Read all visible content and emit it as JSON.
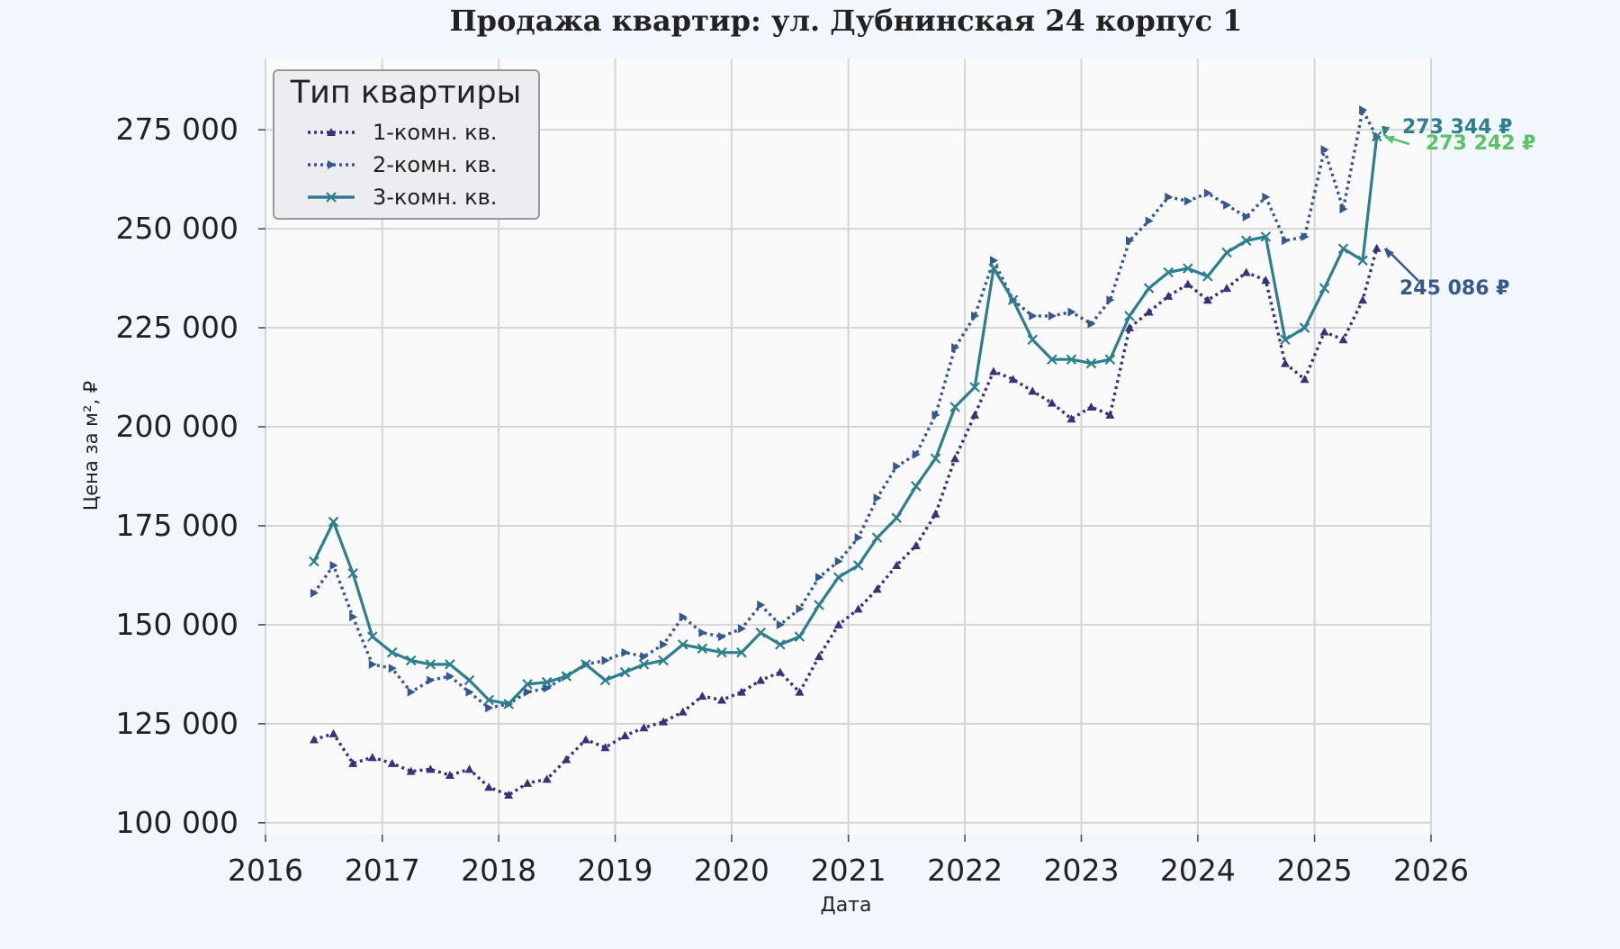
{
  "chart_data": {
    "type": "line",
    "title": "Продажа квартир: ул. Дубнинская 24 корпус 1",
    "xlabel": "Дата",
    "ylabel": "Цена за м², ₽",
    "xlim": [
      "2016-01-01",
      "2026-01-01"
    ],
    "ylim": [
      97000,
      293000
    ],
    "x_ticks": [
      "2016",
      "2017",
      "2018",
      "2019",
      "2020",
      "2021",
      "2022",
      "2023",
      "2024",
      "2025",
      "2026"
    ],
    "y_ticks": [
      "100 000",
      "125 000",
      "150 000",
      "175 000",
      "200 000",
      "225 000",
      "250 000",
      "275 000"
    ],
    "grid": true,
    "legend": {
      "title": "Тип квартиры",
      "placement": "top-left",
      "entries": [
        "1-комн. кв.",
        "2-комн. кв.",
        "3-комн. кв."
      ]
    },
    "series": [
      {
        "name": "1-комн. кв.",
        "color": "#3d2f7b",
        "line_style": "dotted",
        "marker": "triangle-up",
        "points": [
          [
            "2016-06-01",
            121000
          ],
          [
            "2016-08-01",
            122500
          ],
          [
            "2016-10-01",
            115000
          ],
          [
            "2016-12-01",
            116500
          ],
          [
            "2017-02-01",
            115000
          ],
          [
            "2017-04-01",
            113000
          ],
          [
            "2017-06-01",
            113500
          ],
          [
            "2017-08-01",
            112000
          ],
          [
            "2017-10-01",
            113500
          ],
          [
            "2017-12-01",
            109000
          ],
          [
            "2018-02-01",
            107000
          ],
          [
            "2018-04-01",
            110000
          ],
          [
            "2018-06-01",
            111000
          ],
          [
            "2018-08-01",
            116000
          ],
          [
            "2018-10-01",
            121000
          ],
          [
            "2018-12-01",
            119000
          ],
          [
            "2019-02-01",
            122000
          ],
          [
            "2019-04-01",
            124000
          ],
          [
            "2019-06-01",
            125500
          ],
          [
            "2019-08-01",
            128000
          ],
          [
            "2019-10-01",
            132000
          ],
          [
            "2019-12-01",
            131000
          ],
          [
            "2020-02-01",
            133000
          ],
          [
            "2020-04-01",
            136000
          ],
          [
            "2020-06-01",
            138000
          ],
          [
            "2020-08-01",
            133000
          ],
          [
            "2020-10-01",
            142000
          ],
          [
            "2020-12-01",
            150000
          ],
          [
            "2021-02-01",
            154000
          ],
          [
            "2021-04-01",
            159000
          ],
          [
            "2021-06-01",
            165000
          ],
          [
            "2021-08-01",
            170000
          ],
          [
            "2021-10-01",
            178000
          ],
          [
            "2021-12-01",
            192000
          ],
          [
            "2022-02-01",
            203000
          ],
          [
            "2022-04-01",
            214000
          ],
          [
            "2022-06-01",
            212000
          ],
          [
            "2022-08-01",
            209000
          ],
          [
            "2022-10-01",
            206000
          ],
          [
            "2022-12-01",
            202000
          ],
          [
            "2023-02-01",
            205000
          ],
          [
            "2023-04-01",
            203000
          ],
          [
            "2023-06-01",
            225000
          ],
          [
            "2023-08-01",
            229000
          ],
          [
            "2023-10-01",
            233000
          ],
          [
            "2023-12-01",
            236000
          ],
          [
            "2024-02-01",
            232000
          ],
          [
            "2024-04-01",
            235000
          ],
          [
            "2024-06-01",
            239000
          ],
          [
            "2024-08-01",
            237000
          ],
          [
            "2024-10-01",
            216000
          ],
          [
            "2024-12-01",
            212000
          ],
          [
            "2025-02-01",
            224000
          ],
          [
            "2025-04-01",
            222000
          ],
          [
            "2025-06-01",
            232000
          ],
          [
            "2025-07-15",
            245086
          ]
        ]
      },
      {
        "name": "2-комн. кв.",
        "color": "#35598f",
        "line_style": "dotted",
        "marker": "triangle-right",
        "points": [
          [
            "2016-06-01",
            158000
          ],
          [
            "2016-08-01",
            165000
          ],
          [
            "2016-10-01",
            152000
          ],
          [
            "2016-12-01",
            140000
          ],
          [
            "2017-02-01",
            139000
          ],
          [
            "2017-04-01",
            133000
          ],
          [
            "2017-06-01",
            136000
          ],
          [
            "2017-08-01",
            137000
          ],
          [
            "2017-10-01",
            133000
          ],
          [
            "2017-12-01",
            129000
          ],
          [
            "2018-02-01",
            130000
          ],
          [
            "2018-04-01",
            133000
          ],
          [
            "2018-06-01",
            134000
          ],
          [
            "2018-08-01",
            137000
          ],
          [
            "2018-10-01",
            140000
          ],
          [
            "2018-12-01",
            141000
          ],
          [
            "2019-02-01",
            143000
          ],
          [
            "2019-04-01",
            142000
          ],
          [
            "2019-06-01",
            145000
          ],
          [
            "2019-08-01",
            152000
          ],
          [
            "2019-10-01",
            148000
          ],
          [
            "2019-12-01",
            147000
          ],
          [
            "2020-02-01",
            149000
          ],
          [
            "2020-04-01",
            155000
          ],
          [
            "2020-06-01",
            150000
          ],
          [
            "2020-08-01",
            154000
          ],
          [
            "2020-10-01",
            162000
          ],
          [
            "2020-12-01",
            166000
          ],
          [
            "2021-02-01",
            172000
          ],
          [
            "2021-04-01",
            182000
          ],
          [
            "2021-06-01",
            190000
          ],
          [
            "2021-08-01",
            193000
          ],
          [
            "2021-10-01",
            203000
          ],
          [
            "2021-12-01",
            220000
          ],
          [
            "2022-02-01",
            228000
          ],
          [
            "2022-04-01",
            242000
          ],
          [
            "2022-06-01",
            232000
          ],
          [
            "2022-08-01",
            228000
          ],
          [
            "2022-10-01",
            228000
          ],
          [
            "2022-12-01",
            229000
          ],
          [
            "2023-02-01",
            226000
          ],
          [
            "2023-04-01",
            232000
          ],
          [
            "2023-06-01",
            247000
          ],
          [
            "2023-08-01",
            252000
          ],
          [
            "2023-10-01",
            258000
          ],
          [
            "2023-12-01",
            257000
          ],
          [
            "2024-02-01",
            259000
          ],
          [
            "2024-04-01",
            256000
          ],
          [
            "2024-06-01",
            253000
          ],
          [
            "2024-08-01",
            258000
          ],
          [
            "2024-10-01",
            247000
          ],
          [
            "2024-12-01",
            248000
          ],
          [
            "2025-02-01",
            270000
          ],
          [
            "2025-04-01",
            255000
          ],
          [
            "2025-06-01",
            280000
          ],
          [
            "2025-07-15",
            273242
          ]
        ]
      },
      {
        "name": "3-комн. кв.",
        "color": "#2b7f8e",
        "line_style": "solid",
        "marker": "x",
        "points": [
          [
            "2016-06-01",
            166000
          ],
          [
            "2016-08-01",
            176000
          ],
          [
            "2016-10-01",
            163000
          ],
          [
            "2016-12-01",
            147000
          ],
          [
            "2017-02-01",
            143000
          ],
          [
            "2017-04-01",
            141000
          ],
          [
            "2017-06-01",
            140000
          ],
          [
            "2017-08-01",
            140000
          ],
          [
            "2017-10-01",
            136000
          ],
          [
            "2017-12-01",
            131000
          ],
          [
            "2018-02-01",
            130000
          ],
          [
            "2018-04-01",
            135000
          ],
          [
            "2018-06-01",
            135500
          ],
          [
            "2018-08-01",
            137000
          ],
          [
            "2018-10-01",
            140000
          ],
          [
            "2018-12-01",
            136000
          ],
          [
            "2019-02-01",
            138000
          ],
          [
            "2019-04-01",
            140000
          ],
          [
            "2019-06-01",
            141000
          ],
          [
            "2019-08-01",
            145000
          ],
          [
            "2019-10-01",
            144000
          ],
          [
            "2019-12-01",
            143000
          ],
          [
            "2020-02-01",
            143000
          ],
          [
            "2020-04-01",
            148000
          ],
          [
            "2020-06-01",
            145000
          ],
          [
            "2020-08-01",
            147000
          ],
          [
            "2020-10-01",
            155000
          ],
          [
            "2020-12-01",
            162000
          ],
          [
            "2021-02-01",
            165000
          ],
          [
            "2021-04-01",
            172000
          ],
          [
            "2021-06-01",
            177000
          ],
          [
            "2021-08-01",
            185000
          ],
          [
            "2021-10-01",
            192000
          ],
          [
            "2021-12-01",
            205000
          ],
          [
            "2022-02-01",
            210000
          ],
          [
            "2022-04-01",
            240000
          ],
          [
            "2022-06-01",
            232000
          ],
          [
            "2022-08-01",
            222000
          ],
          [
            "2022-10-01",
            217000
          ],
          [
            "2022-12-01",
            217000
          ],
          [
            "2023-02-01",
            216000
          ],
          [
            "2023-04-01",
            217000
          ],
          [
            "2023-06-01",
            228000
          ],
          [
            "2023-08-01",
            235000
          ],
          [
            "2023-10-01",
            239000
          ],
          [
            "2023-12-01",
            240000
          ],
          [
            "2024-02-01",
            238000
          ],
          [
            "2024-04-01",
            244000
          ],
          [
            "2024-06-01",
            247000
          ],
          [
            "2024-08-01",
            248000
          ],
          [
            "2024-10-01",
            222000
          ],
          [
            "2024-12-01",
            225000
          ],
          [
            "2025-02-01",
            235000
          ],
          [
            "2025-04-01",
            245000
          ],
          [
            "2025-06-01",
            242000
          ],
          [
            "2025-07-15",
            273344
          ]
        ]
      }
    ],
    "annotations": [
      {
        "series": "3-комн. кв.",
        "text": "273 344 ₽",
        "color": "#2b7f8e",
        "at": [
          "2025-07-15",
          273344
        ]
      },
      {
        "series": "2-комн. кв.",
        "text": "273 242 ₽",
        "color": "#5cc26a",
        "at": [
          "2025-07-15",
          273242
        ]
      },
      {
        "series": "1-комн. кв.",
        "text": "245 086 ₽",
        "color": "#35598f",
        "at": [
          "2025-07-15",
          245086
        ]
      }
    ]
  }
}
